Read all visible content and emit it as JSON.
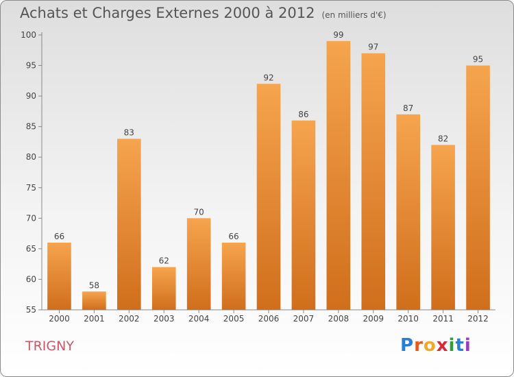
{
  "title": "Achats et Charges Externes 2000 à 2012",
  "subtitle": "(en milliers d'€)",
  "commune": "TRIGNY",
  "logo": {
    "letters": [
      "P",
      "r",
      "o",
      "x",
      "i",
      "t",
      "i"
    ],
    "colors": [
      "#2a7fd4",
      "#e8591a",
      "#f2a92a",
      "#d9283a",
      "#2b9f3a",
      "#2a7fd4",
      "#9b3db8"
    ]
  },
  "colors": {
    "bar_light": "#f6a44e",
    "bar_dark": "#d06e1c",
    "title": "#555555",
    "commune": "#cc5566"
  },
  "chart_data": {
    "type": "bar",
    "categories": [
      "2000",
      "2001",
      "2002",
      "2003",
      "2004",
      "2005",
      "2006",
      "2007",
      "2008",
      "2009",
      "2010",
      "2011",
      "2012"
    ],
    "values": [
      66,
      58,
      83,
      62,
      70,
      66,
      92,
      86,
      99,
      97,
      87,
      82,
      95
    ],
    "ylim": [
      55,
      100
    ],
    "yticks": [
      55,
      60,
      65,
      70,
      75,
      80,
      85,
      90,
      95,
      100
    ],
    "grid": false
  }
}
